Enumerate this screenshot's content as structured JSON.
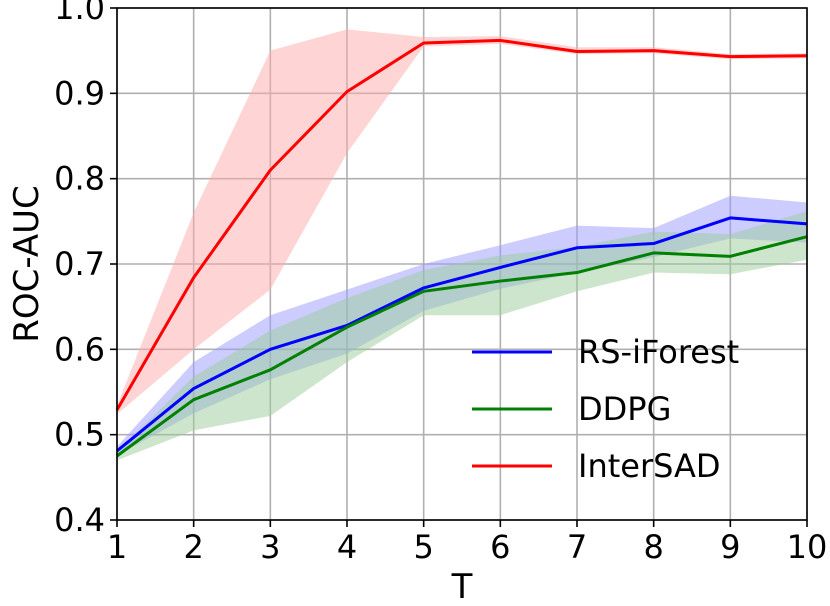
{
  "chart_data": {
    "type": "line",
    "title": "",
    "xlabel": "T",
    "ylabel": "ROC-AUC",
    "x": [
      1,
      2,
      3,
      4,
      5,
      6,
      7,
      8,
      9,
      10
    ],
    "xlim": [
      1,
      10
    ],
    "ylim": [
      0.4,
      1.0
    ],
    "xticks": [
      "1",
      "2",
      "3",
      "4",
      "5",
      "6",
      "7",
      "8",
      "9",
      "10"
    ],
    "yticks": [
      "0.4",
      "0.5",
      "0.6",
      "0.7",
      "0.8",
      "0.9",
      "1.0"
    ],
    "grid": true,
    "legend_position": "lower-right",
    "series": [
      {
        "name": "RS-iForest",
        "color": "#0000ff",
        "band_color": "#9999ff",
        "values": [
          0.481,
          0.554,
          0.6,
          0.628,
          0.672,
          0.696,
          0.719,
          0.724,
          0.754,
          0.747
        ],
        "lower": [
          0.476,
          0.525,
          0.565,
          0.595,
          0.645,
          0.671,
          0.69,
          0.708,
          0.73,
          0.725
        ],
        "upper": [
          0.486,
          0.585,
          0.64,
          0.67,
          0.7,
          0.722,
          0.745,
          0.742,
          0.78,
          0.772
        ]
      },
      {
        "name": "DDPG",
        "color": "#008000",
        "band_color": "#99cc99",
        "values": [
          0.475,
          0.541,
          0.576,
          0.626,
          0.668,
          0.68,
          0.69,
          0.713,
          0.709,
          0.732
        ],
        "lower": [
          0.47,
          0.505,
          0.522,
          0.585,
          0.64,
          0.64,
          0.668,
          0.69,
          0.688,
          0.705
        ],
        "upper": [
          0.48,
          0.568,
          0.622,
          0.66,
          0.693,
          0.71,
          0.72,
          0.738,
          0.735,
          0.762
        ]
      },
      {
        "name": "InterSAD",
        "color": "#ff0000",
        "band_color": "#ffaaaa",
        "values": [
          0.529,
          0.684,
          0.81,
          0.902,
          0.959,
          0.962,
          0.949,
          0.95,
          0.943,
          0.944
        ],
        "lower": [
          0.524,
          0.6,
          0.67,
          0.83,
          0.955,
          0.958,
          0.946,
          0.947,
          0.94,
          0.941
        ],
        "upper": [
          0.534,
          0.76,
          0.95,
          0.975,
          0.966,
          0.967,
          0.954,
          0.954,
          0.946,
          0.947
        ]
      }
    ]
  }
}
